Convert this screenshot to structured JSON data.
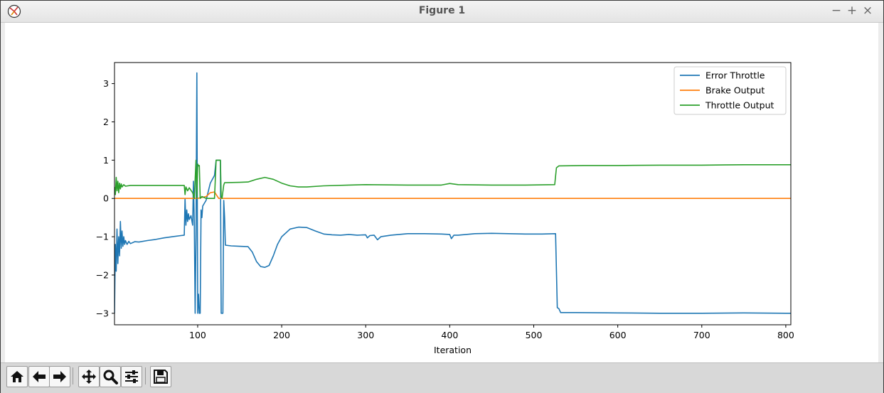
{
  "window": {
    "title": "Figure 1"
  },
  "window_controls": {
    "minimize": "−",
    "maximize": "+",
    "close": "×"
  },
  "toolbar": {
    "buttons": [
      {
        "name": "home",
        "icon": "home-icon"
      },
      {
        "name": "back",
        "icon": "arrow-left-icon"
      },
      {
        "name": "forward",
        "icon": "arrow-right-icon"
      },
      {
        "name": "pan",
        "icon": "move-icon"
      },
      {
        "name": "zoom",
        "icon": "magnifier-icon"
      },
      {
        "name": "subplots",
        "icon": "sliders-icon"
      },
      {
        "name": "save",
        "icon": "floppy-disk-icon"
      }
    ]
  },
  "chart_data": {
    "type": "line",
    "xlabel": "Iteration",
    "ylabel": "",
    "xlim": [
      1,
      806
    ],
    "ylim": [
      -3.3,
      3.55
    ],
    "xticks": [
      100,
      200,
      300,
      400,
      500,
      600,
      700,
      800
    ],
    "yticks": [
      -3,
      -2,
      -1,
      0,
      1,
      2,
      3
    ],
    "grid": false,
    "legend_position": "top-right",
    "series": [
      {
        "name": "Error Throttle",
        "color": "#1f77b4",
        "points": [
          [
            1,
            -3.0
          ],
          [
            2,
            -1.2
          ],
          [
            3,
            -1.9
          ],
          [
            4,
            -0.8
          ],
          [
            5,
            -1.7
          ],
          [
            6,
            -1.0
          ],
          [
            7,
            -1.5
          ],
          [
            8,
            -0.6
          ],
          [
            9,
            -1.3
          ],
          [
            10,
            -0.85
          ],
          [
            11,
            -1.25
          ],
          [
            12,
            -1.0
          ],
          [
            13,
            -1.2
          ],
          [
            14,
            -1.1
          ],
          [
            16,
            -1.2
          ],
          [
            18,
            -1.12
          ],
          [
            20,
            -1.18
          ],
          [
            25,
            -1.13
          ],
          [
            30,
            -1.14
          ],
          [
            40,
            -1.1
          ],
          [
            50,
            -1.07
          ],
          [
            60,
            -1.03
          ],
          [
            70,
            -1.0
          ],
          [
            80,
            -0.97
          ],
          [
            84,
            -0.96
          ],
          [
            85,
            0.0
          ],
          [
            86,
            -0.7
          ],
          [
            87,
            -0.3
          ],
          [
            88,
            -0.6
          ],
          [
            89,
            -0.4
          ],
          [
            90,
            -0.55
          ],
          [
            92,
            -0.45
          ],
          [
            94,
            -0.7
          ],
          [
            95,
            0.45
          ],
          [
            96,
            -0.6
          ],
          [
            97,
            -3.0
          ],
          [
            98,
            -1.0
          ],
          [
            99,
            3.28
          ],
          [
            100,
            -3.0
          ],
          [
            101,
            -2.5
          ],
          [
            102,
            -3.0
          ],
          [
            103,
            -3.0
          ],
          [
            104,
            -0.3
          ],
          [
            105,
            -0.5
          ],
          [
            106,
            -0.2
          ],
          [
            110,
            -0.05
          ],
          [
            115,
            0.4
          ],
          [
            120,
            0.6
          ],
          [
            122,
            1.0
          ],
          [
            127,
            1.0
          ],
          [
            128,
            -3.0
          ],
          [
            129,
            -3.0
          ],
          [
            130,
            -3.0
          ],
          [
            131,
            -0.05
          ],
          [
            132,
            -0.5
          ],
          [
            133,
            -1.22
          ],
          [
            140,
            -1.24
          ],
          [
            150,
            -1.25
          ],
          [
            160,
            -1.26
          ],
          [
            165,
            -1.4
          ],
          [
            170,
            -1.65
          ],
          [
            175,
            -1.78
          ],
          [
            180,
            -1.8
          ],
          [
            185,
            -1.75
          ],
          [
            190,
            -1.5
          ],
          [
            195,
            -1.2
          ],
          [
            200,
            -1.0
          ],
          [
            210,
            -0.8
          ],
          [
            220,
            -0.75
          ],
          [
            230,
            -0.76
          ],
          [
            240,
            -0.85
          ],
          [
            250,
            -0.93
          ],
          [
            260,
            -0.95
          ],
          [
            270,
            -0.96
          ],
          [
            280,
            -0.94
          ],
          [
            290,
            -0.96
          ],
          [
            300,
            -0.95
          ],
          [
            302,
            -1.03
          ],
          [
            305,
            -0.97
          ],
          [
            310,
            -0.96
          ],
          [
            314,
            -1.08
          ],
          [
            318,
            -1.0
          ],
          [
            330,
            -0.96
          ],
          [
            350,
            -0.92
          ],
          [
            370,
            -0.92
          ],
          [
            390,
            -0.93
          ],
          [
            400,
            -0.94
          ],
          [
            402,
            -1.05
          ],
          [
            405,
            -0.96
          ],
          [
            410,
            -0.96
          ],
          [
            430,
            -0.92
          ],
          [
            450,
            -0.91
          ],
          [
            470,
            -0.92
          ],
          [
            490,
            -0.93
          ],
          [
            510,
            -0.93
          ],
          [
            526,
            -0.92
          ],
          [
            528,
            -2.85
          ],
          [
            530,
            -2.88
          ],
          [
            532,
            -2.98
          ],
          [
            550,
            -2.98
          ],
          [
            600,
            -2.99
          ],
          [
            650,
            -3.0
          ],
          [
            700,
            -3.0
          ],
          [
            750,
            -2.99
          ],
          [
            800,
            -3.0
          ],
          [
            806,
            -3.0
          ]
        ]
      },
      {
        "name": "Brake Output",
        "color": "#ff7f0e",
        "points": [
          [
            1,
            0.0
          ],
          [
            100,
            0.0
          ],
          [
            110,
            0.05
          ],
          [
            115,
            0.15
          ],
          [
            120,
            0.17
          ],
          [
            125,
            0.0
          ],
          [
            806,
            0.0
          ]
        ]
      },
      {
        "name": "Throttle Output",
        "color": "#2ca02c",
        "points": [
          [
            1,
            0.3
          ],
          [
            2,
            0.1
          ],
          [
            3,
            0.55
          ],
          [
            4,
            0.2
          ],
          [
            5,
            0.45
          ],
          [
            6,
            0.15
          ],
          [
            7,
            0.4
          ],
          [
            8,
            0.25
          ],
          [
            9,
            0.38
          ],
          [
            10,
            0.3
          ],
          [
            12,
            0.36
          ],
          [
            14,
            0.32
          ],
          [
            20,
            0.34
          ],
          [
            40,
            0.34
          ],
          [
            60,
            0.34
          ],
          [
            80,
            0.34
          ],
          [
            84,
            0.34
          ],
          [
            85,
            0.1
          ],
          [
            86,
            0.3
          ],
          [
            88,
            0.2
          ],
          [
            90,
            0.28
          ],
          [
            94,
            0.15
          ],
          [
            96,
            0.0
          ],
          [
            97,
            0.5
          ],
          [
            98,
            1.0
          ],
          [
            99,
            0.0
          ],
          [
            100,
            0.9
          ],
          [
            101,
            0.85
          ],
          [
            102,
            0.86
          ],
          [
            103,
            0.0
          ],
          [
            105,
            0.05
          ],
          [
            110,
            0.0
          ],
          [
            120,
            0.0
          ],
          [
            122,
            1.0
          ],
          [
            127,
            1.0
          ],
          [
            128,
            0.05
          ],
          [
            129,
            0.0
          ],
          [
            131,
            0.35
          ],
          [
            132,
            0.41
          ],
          [
            150,
            0.42
          ],
          [
            160,
            0.43
          ],
          [
            170,
            0.5
          ],
          [
            180,
            0.55
          ],
          [
            190,
            0.5
          ],
          [
            200,
            0.4
          ],
          [
            210,
            0.33
          ],
          [
            220,
            0.3
          ],
          [
            230,
            0.3
          ],
          [
            250,
            0.33
          ],
          [
            280,
            0.35
          ],
          [
            300,
            0.36
          ],
          [
            350,
            0.35
          ],
          [
            390,
            0.35
          ],
          [
            400,
            0.39
          ],
          [
            410,
            0.36
          ],
          [
            450,
            0.35
          ],
          [
            490,
            0.35
          ],
          [
            525,
            0.36
          ],
          [
            527,
            0.8
          ],
          [
            530,
            0.85
          ],
          [
            560,
            0.86
          ],
          [
            600,
            0.86
          ],
          [
            650,
            0.87
          ],
          [
            700,
            0.87
          ],
          [
            750,
            0.88
          ],
          [
            806,
            0.88
          ]
        ]
      }
    ]
  }
}
